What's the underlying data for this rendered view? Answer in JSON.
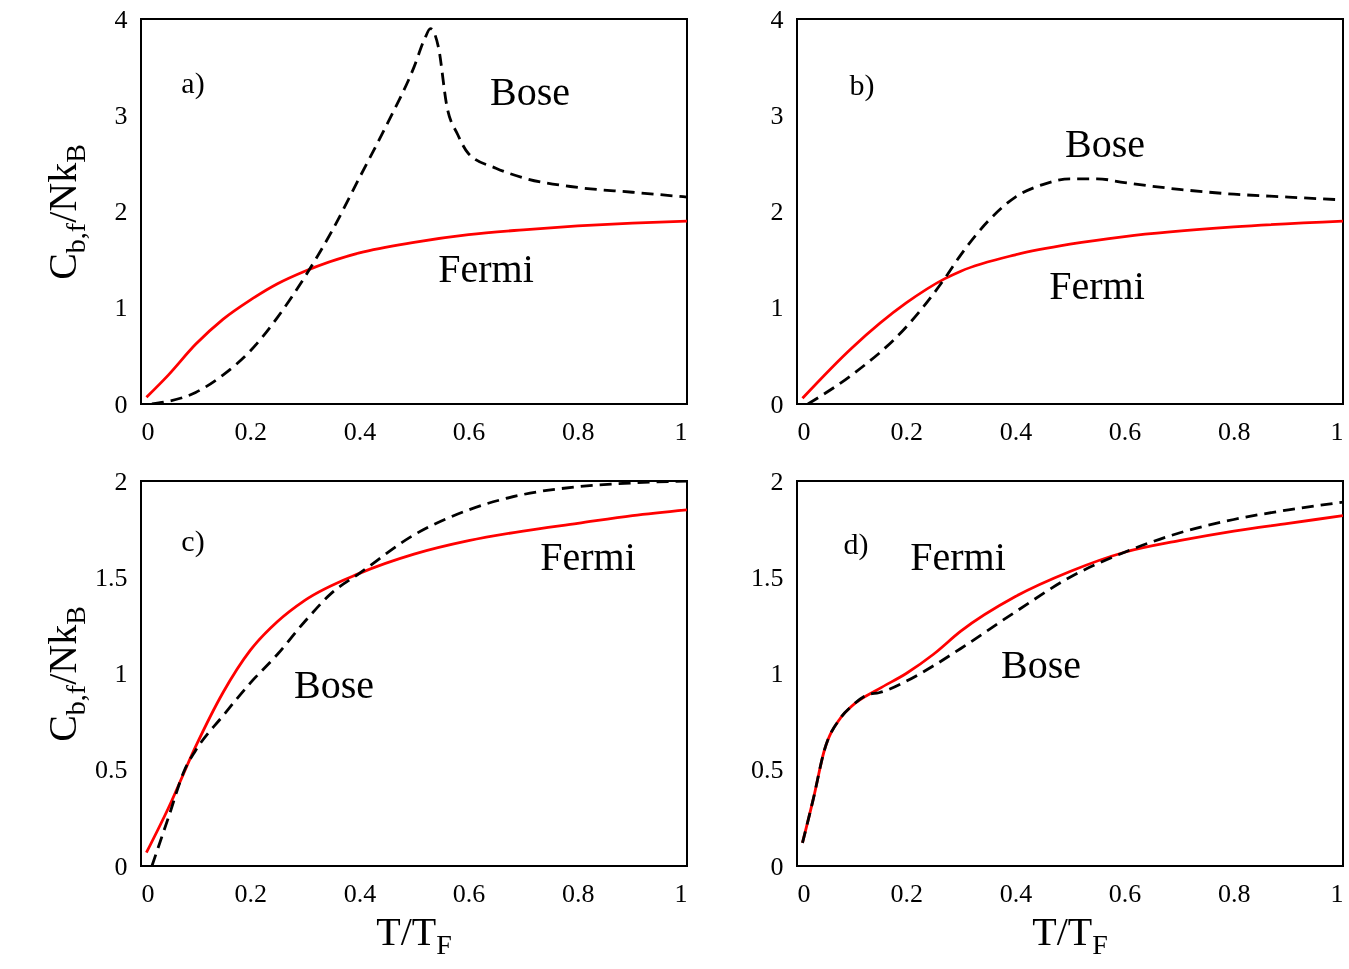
{
  "chart_data": [
    {
      "type": "line",
      "ylabel": "C$_{b,f}$/Nk$_{B}$",
      "annotations": [
        "a)"
      ],
      "xlim": [
        0,
        1
      ],
      "xticks": [
        0,
        0.2,
        0.4,
        0.6,
        0.8,
        1
      ],
      "ylim": [
        0,
        4
      ],
      "yticks": [
        0,
        1,
        2,
        3,
        4
      ],
      "series": [
        {
          "name": "Bose",
          "color": "#000000",
          "line_style": "dashed",
          "x": [
            0.02,
            0.1,
            0.15,
            0.2,
            0.25,
            0.3,
            0.35,
            0.4,
            0.45,
            0.5,
            0.52,
            0.53,
            0.545,
            0.56,
            0.58,
            0.6,
            0.65,
            0.7,
            0.8,
            0.9,
            1.0
          ],
          "values": [
            0,
            0.12,
            0.3,
            0.55,
            0.9,
            1.32,
            1.8,
            2.35,
            2.9,
            3.5,
            3.8,
            3.9,
            3.7,
            3.1,
            2.8,
            2.6,
            2.45,
            2.35,
            2.25,
            2.2,
            2.15
          ]
        },
        {
          "name": "Fermi",
          "color": "#ff0000",
          "line_style": "solid",
          "x": [
            0.01,
            0.05,
            0.1,
            0.15,
            0.2,
            0.25,
            0.3,
            0.4,
            0.5,
            0.6,
            0.7,
            0.8,
            0.9,
            1.0
          ],
          "values": [
            0.07,
            0.3,
            0.62,
            0.88,
            1.08,
            1.25,
            1.38,
            1.57,
            1.68,
            1.76,
            1.81,
            1.85,
            1.88,
            1.9
          ]
        }
      ]
    },
    {
      "type": "line",
      "annotations": [
        "b)"
      ],
      "xlim": [
        0,
        1
      ],
      "xticks": [
        0,
        0.2,
        0.4,
        0.6,
        0.8,
        1
      ],
      "ylim": [
        0,
        4
      ],
      "yticks": [
        0,
        1,
        2,
        3,
        4
      ],
      "series": [
        {
          "name": "Bose",
          "color": "#000000",
          "line_style": "dashed",
          "x": [
            0.02,
            0.1,
            0.2,
            0.27,
            0.3,
            0.35,
            0.4,
            0.45,
            0.5,
            0.55,
            0.6,
            0.7,
            0.8,
            0.9,
            1.0
          ],
          "values": [
            0,
            0.3,
            0.8,
            1.3,
            1.55,
            1.9,
            2.15,
            2.28,
            2.34,
            2.34,
            2.3,
            2.23,
            2.18,
            2.15,
            2.12
          ]
        },
        {
          "name": "Fermi",
          "color": "#ff0000",
          "line_style": "solid",
          "x": [
            0.01,
            0.1,
            0.2,
            0.27,
            0.3,
            0.4,
            0.5,
            0.6,
            0.8,
            1.0
          ],
          "values": [
            0.06,
            0.58,
            1.05,
            1.3,
            1.38,
            1.55,
            1.66,
            1.74,
            1.84,
            1.9
          ]
        }
      ]
    },
    {
      "type": "line",
      "xlabel": "T/T$_{F}$",
      "ylabel": "C$_{b,f}$/Nk$_{B}$",
      "annotations": [
        "c)"
      ],
      "xlim": [
        0,
        1
      ],
      "xticks": [
        0,
        0.2,
        0.4,
        0.6,
        0.8,
        1
      ],
      "ylim": [
        0,
        2
      ],
      "yticks": [
        0,
        0.5,
        1,
        1.5,
        2
      ],
      "series": [
        {
          "name": "Bose",
          "color": "#000000",
          "line_style": "dashed",
          "x": [
            0.02,
            0.05,
            0.08,
            0.1,
            0.15,
            0.2,
            0.25,
            0.3,
            0.35,
            0.4,
            0.5,
            0.6,
            0.7,
            0.8,
            0.9,
            1.0
          ],
          "values": [
            0,
            0.25,
            0.5,
            0.6,
            0.78,
            0.95,
            1.1,
            1.27,
            1.42,
            1.52,
            1.72,
            1.85,
            1.93,
            1.97,
            1.99,
            2.0
          ]
        },
        {
          "name": "Fermi",
          "color": "#ff0000",
          "line_style": "solid",
          "x": [
            0.01,
            0.05,
            0.1,
            0.15,
            0.2,
            0.25,
            0.3,
            0.4,
            0.5,
            0.6,
            0.7,
            0.8,
            0.9,
            1.0
          ],
          "values": [
            0.07,
            0.3,
            0.62,
            0.9,
            1.12,
            1.27,
            1.38,
            1.52,
            1.62,
            1.69,
            1.74,
            1.78,
            1.82,
            1.85
          ]
        }
      ]
    },
    {
      "type": "line",
      "xlabel": "T/T$_{F}$",
      "annotations": [
        "d)"
      ],
      "xlim": [
        0,
        1
      ],
      "xticks": [
        0,
        0.2,
        0.4,
        0.6,
        0.8,
        1
      ],
      "ylim": [
        0,
        2
      ],
      "yticks": [
        0,
        0.5,
        1,
        1.5,
        2
      ],
      "series": [
        {
          "name": "Bose",
          "color": "#000000",
          "line_style": "dashed",
          "x": [
            0.01,
            0.03,
            0.05,
            0.08,
            0.1,
            0.13,
            0.15,
            0.2,
            0.25,
            0.3,
            0.4,
            0.5,
            0.6,
            0.7,
            0.8,
            0.9,
            1.0
          ],
          "values": [
            0.12,
            0.35,
            0.6,
            0.77,
            0.83,
            0.89,
            0.9,
            0.96,
            1.04,
            1.13,
            1.32,
            1.5,
            1.63,
            1.73,
            1.8,
            1.85,
            1.89
          ]
        },
        {
          "name": "Fermi",
          "color": "#ff0000",
          "line_style": "solid",
          "x": [
            0.01,
            0.03,
            0.05,
            0.08,
            0.1,
            0.15,
            0.2,
            0.25,
            0.3,
            0.4,
            0.5,
            0.6,
            0.7,
            0.8,
            0.9,
            1.0
          ],
          "values": [
            0.12,
            0.35,
            0.6,
            0.77,
            0.83,
            0.92,
            1.0,
            1.1,
            1.22,
            1.4,
            1.53,
            1.63,
            1.69,
            1.74,
            1.78,
            1.82
          ]
        }
      ]
    }
  ]
}
